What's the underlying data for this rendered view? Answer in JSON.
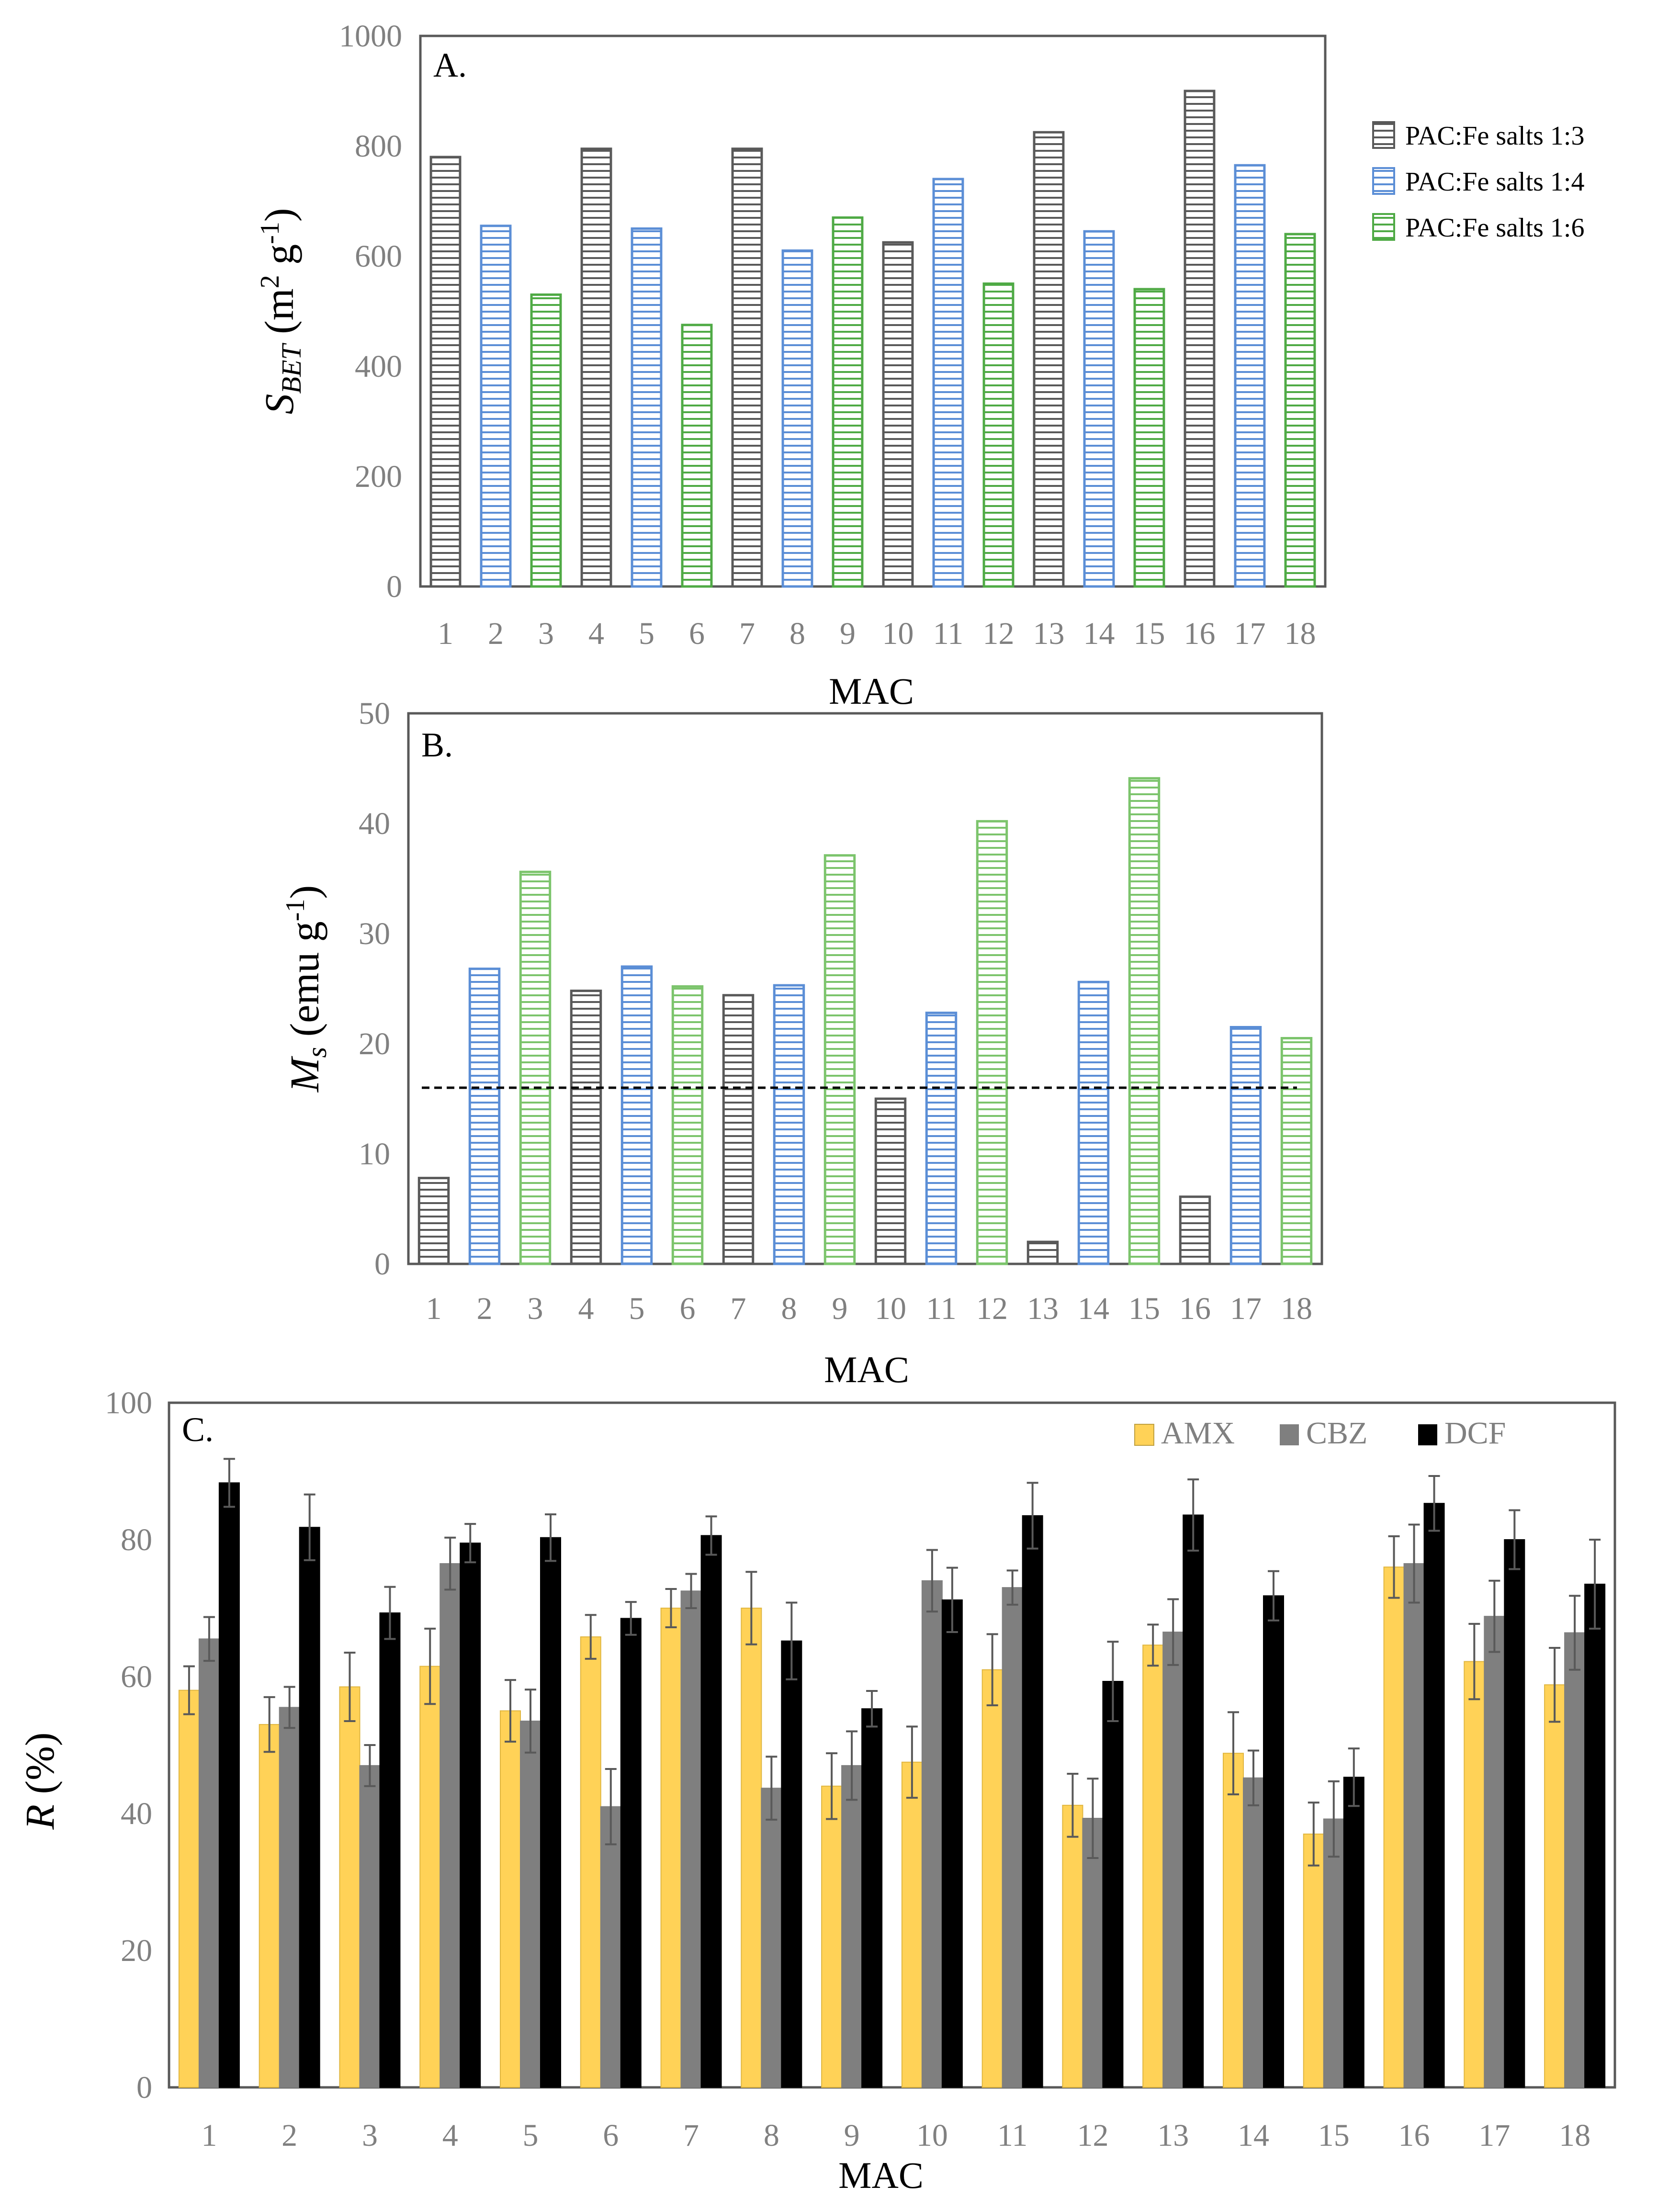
{
  "colors": {
    "pac13": "#595959",
    "pac14": "#5b8ed6",
    "pac16": "#4faa45",
    "pac16_light": "#7cc46c",
    "amx": "#ffd257",
    "cbz": "#7f7f7f",
    "dcf": "#000000",
    "tick": "#808080",
    "axis": "#595959"
  },
  "chart_data": [
    {
      "id": "A",
      "type": "bar",
      "panel_label": "A.",
      "xlabel": "MAC",
      "ylabel_main": "S",
      "ylabel_sub": "BET",
      "ylabel_unit_open": " (m",
      "ylabel_unit_sup1": "2",
      "ylabel_unit_mid": " g",
      "ylabel_unit_sup2": "-1",
      "ylabel_unit_close": ")",
      "ylim": [
        0,
        1000
      ],
      "yticks": [
        "0",
        "200",
        "400",
        "600",
        "800",
        "1000"
      ],
      "categories": [
        "1",
        "2",
        "3",
        "4",
        "5",
        "6",
        "7",
        "8",
        "9",
        "10",
        "11",
        "12",
        "13",
        "14",
        "15",
        "16",
        "17",
        "18"
      ],
      "values": [
        780,
        655,
        530,
        795,
        650,
        475,
        795,
        610,
        670,
        625,
        740,
        550,
        825,
        645,
        540,
        900,
        765,
        640
      ],
      "groups": [
        "pac13",
        "pac14",
        "pac16",
        "pac13",
        "pac14",
        "pac16",
        "pac13",
        "pac14",
        "pac16",
        "pac13",
        "pac14",
        "pac16",
        "pac13",
        "pac14",
        "pac16",
        "pac13",
        "pac14",
        "pac16"
      ],
      "legend": [
        {
          "key": "pac13",
          "label": "PAC:Fe salts 1:3"
        },
        {
          "key": "pac14",
          "label": "PAC:Fe salts 1:4"
        },
        {
          "key": "pac16",
          "label": "PAC:Fe salts 1:6"
        }
      ]
    },
    {
      "id": "B",
      "type": "bar",
      "panel_label": "B.",
      "xlabel": "MAC",
      "ylabel_main": "M",
      "ylabel_sub": "s",
      "ylabel_unit_open": " (emu g",
      "ylabel_unit_sup1": "-1",
      "ylabel_unit_close": ")",
      "ylim": [
        0,
        50
      ],
      "yticks": [
        "0",
        "10",
        "20",
        "30",
        "40",
        "50"
      ],
      "categories": [
        "1",
        "2",
        "3",
        "4",
        "5",
        "6",
        "7",
        "8",
        "9",
        "10",
        "11",
        "12",
        "13",
        "14",
        "15",
        "16",
        "17",
        "18"
      ],
      "values": [
        7.8,
        26.8,
        35.6,
        24.8,
        27.0,
        25.2,
        24.4,
        25.3,
        37.1,
        15.0,
        22.8,
        40.2,
        2.0,
        25.6,
        44.1,
        6.1,
        21.5,
        20.5
      ],
      "groups": [
        "pac13",
        "pac14",
        "pac16",
        "pac13",
        "pac14",
        "pac16",
        "pac13",
        "pac14",
        "pac16",
        "pac13",
        "pac14",
        "pac16",
        "pac13",
        "pac14",
        "pac16",
        "pac13",
        "pac14",
        "pac16"
      ],
      "reference_line": 16
    },
    {
      "id": "C",
      "type": "bar",
      "panel_label": "C.",
      "xlabel": "MAC",
      "ylabel_main": "R",
      "ylabel_unit_open": " (%)",
      "ylim": [
        0,
        100
      ],
      "yticks": [
        "0",
        "20",
        "40",
        "60",
        "80",
        "100"
      ],
      "categories": [
        "1",
        "2",
        "3",
        "4",
        "5",
        "6",
        "7",
        "8",
        "9",
        "10",
        "11",
        "12",
        "13",
        "14",
        "15",
        "16",
        "17",
        "18"
      ],
      "series": [
        {
          "name": "AMX",
          "key": "amx",
          "values": [
            58,
            53,
            58.5,
            61.5,
            55,
            65.8,
            70,
            70,
            44,
            47.5,
            61,
            41.2,
            64.6,
            48.8,
            37,
            76,
            62.2,
            58.8
          ],
          "errors": [
            3.5,
            4,
            5,
            5.5,
            4.5,
            3.2,
            2.8,
            5.3,
            4.8,
            5.2,
            5.2,
            4.6,
            3,
            6,
            4.6,
            4.5,
            5.5,
            5.4
          ]
        },
        {
          "name": "CBZ",
          "key": "cbz",
          "values": [
            65.5,
            55.5,
            47,
            76.5,
            53.5,
            41,
            72.5,
            43.7,
            47,
            74,
            73,
            39.3,
            66.5,
            45.2,
            39.2,
            76.5,
            68.8,
            66.4
          ],
          "errors": [
            3.2,
            3,
            3,
            3.8,
            4.6,
            5.5,
            2.5,
            4.6,
            5,
            4.5,
            2.5,
            5.8,
            4.8,
            4,
            5.5,
            5.7,
            5.2,
            5.4
          ]
        },
        {
          "name": "DCF",
          "key": "dcf",
          "values": [
            88.3,
            81.8,
            69.3,
            79.5,
            80.3,
            68.5,
            80.6,
            65.2,
            55.3,
            71.2,
            83.5,
            59.3,
            83.6,
            71.8,
            45.3,
            85.3,
            80,
            73.5
          ],
          "errors": [
            3.5,
            4.8,
            3.8,
            2.8,
            3.4,
            2.4,
            2.8,
            5.6,
            2.6,
            4.7,
            4.8,
            5.8,
            5.2,
            3.6,
            4.2,
            4,
            4.3,
            6.5
          ]
        }
      ]
    }
  ]
}
